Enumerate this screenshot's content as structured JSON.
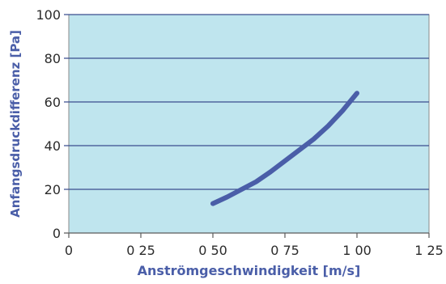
{
  "chart_data": {
    "type": "line",
    "title": "",
    "xlabel": "Anströmgeschwindigkeit [m/s]",
    "ylabel": "Anfangsdruckdifferenz [Pa]",
    "xlim": [
      0,
      1.25
    ],
    "ylim": [
      0,
      100
    ],
    "x_ticks": [
      0,
      0.25,
      0.5,
      0.75,
      1.0,
      1.25
    ],
    "x_tick_labels": [
      "0",
      "0 25",
      "0 50",
      "0 75",
      "1 00",
      "1 25"
    ],
    "y_ticks": [
      0,
      20,
      40,
      60,
      80,
      100
    ],
    "y_tick_labels": [
      "0",
      "20",
      "40",
      "60",
      "80",
      "100"
    ],
    "grid": "horizontal",
    "legend": "none",
    "series": [
      {
        "x": [
          0.5,
          0.55,
          0.6,
          0.65,
          0.7,
          0.75,
          0.8,
          0.85,
          0.9,
          0.95,
          1.0
        ],
        "values": [
          13.5,
          16.5,
          20,
          23.5,
          28,
          33,
          38,
          43,
          49,
          56,
          64
        ]
      }
    ],
    "colors": {
      "plot_background": "#bfe5ee",
      "series": "#4a5ea8",
      "gridline": "#3a4d8f",
      "axis_text": "#4a5ea8"
    }
  }
}
